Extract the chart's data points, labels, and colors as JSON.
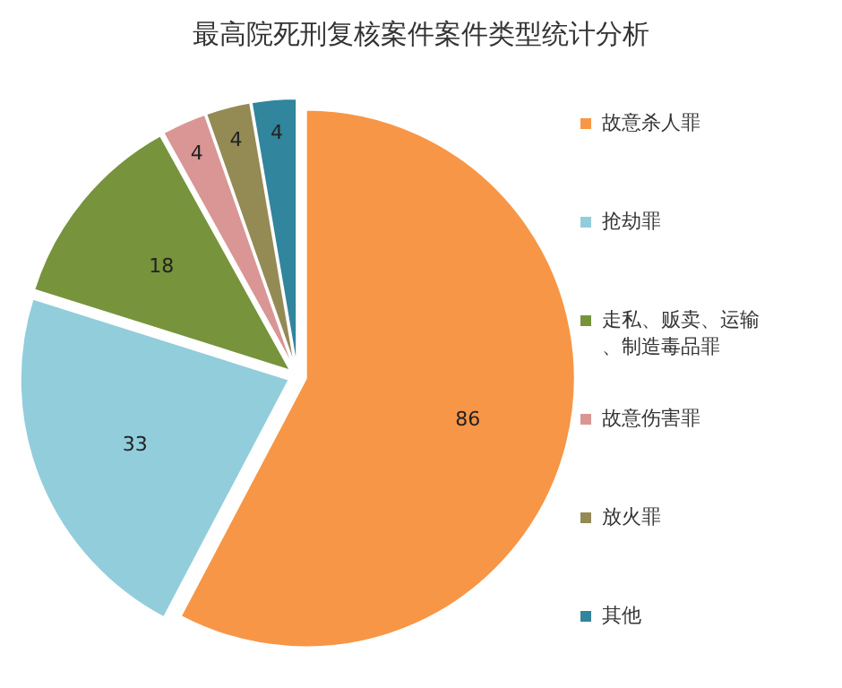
{
  "chart_data": {
    "type": "pie",
    "title": "最高院死刑复核案件案件类型统计分析",
    "categories": [
      "故意杀人罪",
      "抢劫罪",
      "走私、贩卖、运输、制造毒品罪",
      "故意伤害罪",
      "放火罪",
      "其他"
    ],
    "values": [
      86,
      33,
      18,
      4,
      4,
      4
    ],
    "colors": [
      "#f79646",
      "#92cddc",
      "#77933c",
      "#d99694",
      "#948a54",
      "#31859c"
    ],
    "data_labels": true,
    "legend": "right"
  }
}
